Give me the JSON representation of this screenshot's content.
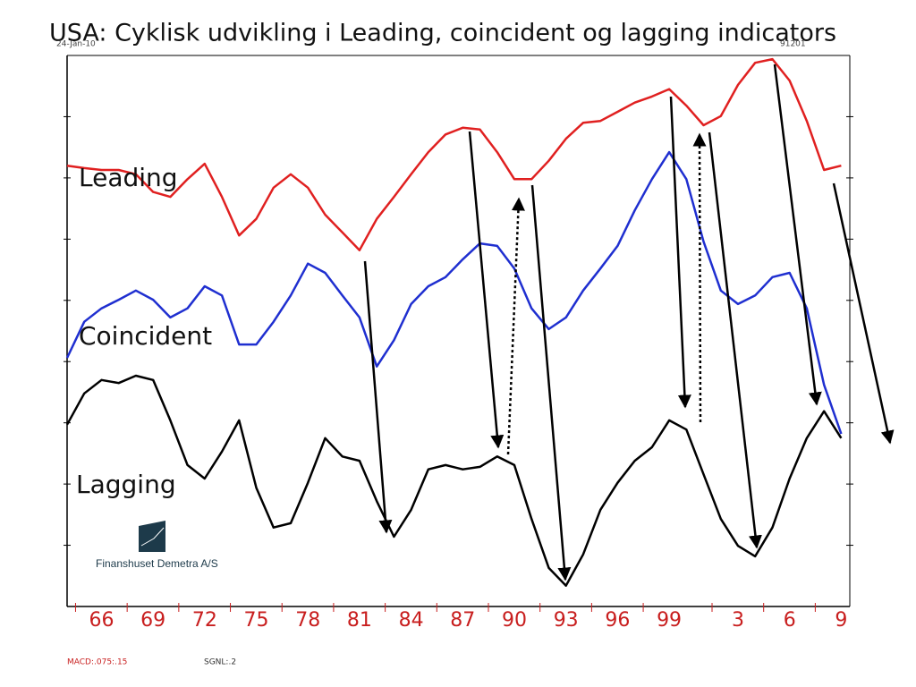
{
  "chart_data": {
    "type": "line",
    "title": "USA: Cyklisk udvikling i Leading, coincident og lagging indicators",
    "annotations": [
      "24-Jan-10",
      "91201",
      "Finanshuset Demetra A/S",
      "MACD:.075:.15",
      "SGNL:.2"
    ],
    "x": [
      1964,
      1965,
      1966,
      1967,
      1968,
      1969,
      1970,
      1971,
      1972,
      1973,
      1974,
      1975,
      1976,
      1977,
      1978,
      1979,
      1980,
      1981,
      1982,
      1983,
      1984,
      1985,
      1986,
      1987,
      1988,
      1989,
      1990,
      1991,
      1992,
      1993,
      1994,
      1995,
      1996,
      1997,
      1998,
      1999,
      2000,
      2001,
      2002,
      2003,
      2004,
      2005,
      2006,
      2007,
      2008,
      2009
    ],
    "xlim": [
      1964,
      2009.5
    ],
    "xticks": [
      {
        "value": 1966,
        "label": "66"
      },
      {
        "value": 1969,
        "label": "69"
      },
      {
        "value": 1972,
        "label": "72"
      },
      {
        "value": 1975,
        "label": "75"
      },
      {
        "value": 1978,
        "label": "78"
      },
      {
        "value": 1981,
        "label": "81"
      },
      {
        "value": 1984,
        "label": "84"
      },
      {
        "value": 1987,
        "label": "87"
      },
      {
        "value": 1990,
        "label": "90"
      },
      {
        "value": 1993,
        "label": "93"
      },
      {
        "value": 1996,
        "label": "96"
      },
      {
        "value": 1999,
        "label": "99"
      },
      {
        "value": 2003,
        "label": "3"
      },
      {
        "value": 2006,
        "label": "6"
      },
      {
        "value": 2009,
        "label": "9"
      }
    ],
    "ylim": [
      0,
      9
    ],
    "yticks": [
      1,
      2,
      3,
      4,
      5,
      6,
      7,
      8
    ],
    "series": [
      {
        "name": "Leading",
        "color": "#e02020",
        "values": [
          7.2,
          7.16,
          7.13,
          7.13,
          7.06,
          6.77,
          6.69,
          6.98,
          7.23,
          6.69,
          6.06,
          6.33,
          6.84,
          7.06,
          6.84,
          6.4,
          6.11,
          5.82,
          6.33,
          6.69,
          7.06,
          7.42,
          7.71,
          7.82,
          7.79,
          7.42,
          6.98,
          6.98,
          7.28,
          7.64,
          7.9,
          7.93,
          8.08,
          8.23,
          8.33,
          8.45,
          8.18,
          7.86,
          8.01,
          8.52,
          8.88,
          8.94,
          8.59,
          7.93,
          7.13,
          7.2
        ]
      },
      {
        "name": "Coincident",
        "color": "#1f2fd0",
        "values": [
          4.06,
          4.65,
          4.87,
          5.01,
          5.16,
          5.01,
          4.72,
          4.87,
          5.23,
          5.08,
          4.28,
          4.28,
          4.65,
          5.08,
          5.6,
          5.45,
          5.08,
          4.72,
          3.92,
          4.35,
          4.94,
          5.23,
          5.38,
          5.67,
          5.93,
          5.89,
          5.52,
          4.87,
          4.53,
          4.72,
          5.16,
          5.52,
          5.89,
          6.47,
          6.98,
          7.42,
          6.98,
          5.96,
          5.16,
          4.94,
          5.08,
          5.38,
          5.45,
          4.87,
          3.62,
          2.82
        ]
      },
      {
        "name": "Lagging",
        "color": "#000000",
        "values": [
          2.97,
          3.48,
          3.7,
          3.65,
          3.77,
          3.7,
          3.04,
          2.31,
          2.09,
          2.53,
          3.04,
          1.94,
          1.29,
          1.36,
          2.02,
          2.75,
          2.45,
          2.38,
          1.72,
          1.14,
          1.58,
          2.24,
          2.31,
          2.24,
          2.28,
          2.45,
          2.31,
          1.43,
          0.63,
          0.34,
          0.85,
          1.58,
          2.02,
          2.38,
          2.6,
          3.04,
          2.89,
          2.16,
          1.43,
          0.99,
          0.82,
          1.29,
          2.09,
          2.75,
          3.19,
          2.75
        ]
      }
    ]
  }
}
